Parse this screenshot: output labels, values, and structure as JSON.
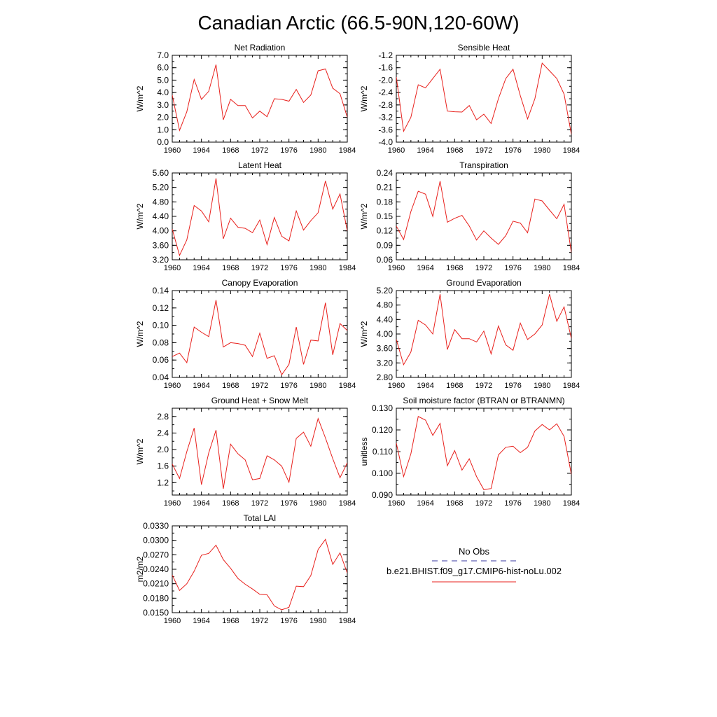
{
  "title": "Canadian Arctic (66.5-90N,120-60W)",
  "legend": {
    "entries": [
      {
        "label": "No Obs",
        "color": "#3a3aa0",
        "dashed": true
      },
      {
        "label": "b.e21.BHIST.f09_g17.CMIP6-hist-noLu.002",
        "color": "#e8201c",
        "dashed": false
      }
    ]
  },
  "chart_data": [
    {
      "type": "line",
      "title": "Net Radiation",
      "ylabel": "W/m^2",
      "ylim": [
        0.0,
        7.0
      ],
      "yticks": [
        "0.0",
        "1.0",
        "2.0",
        "3.0",
        "4.0",
        "5.0",
        "6.0",
        "7.0"
      ],
      "xticks": [
        "1960",
        "1964",
        "1968",
        "1972",
        "1976",
        "1980",
        "1984"
      ],
      "x": [
        1960,
        1961,
        1962,
        1963,
        1964,
        1965,
        1966,
        1967,
        1968,
        1969,
        1970,
        1971,
        1972,
        1973,
        1974,
        1975,
        1976,
        1977,
        1978,
        1979,
        1980,
        1981,
        1982,
        1983,
        1984
      ],
      "series": [
        {
          "color": "#e8201c",
          "values": [
            3.8,
            0.95,
            2.45,
            5.05,
            3.45,
            4.1,
            6.25,
            1.8,
            3.45,
            2.95,
            2.95,
            1.95,
            2.5,
            2.05,
            3.5,
            3.45,
            3.3,
            4.25,
            3.2,
            3.8,
            5.75,
            5.9,
            4.35,
            3.9,
            2.0
          ]
        }
      ]
    },
    {
      "type": "line",
      "title": "Sensible Heat",
      "ylabel": "W/m^2",
      "ylim": [
        -4.0,
        -1.2
      ],
      "yticks": [
        "-4.0",
        "-3.6",
        "-3.2",
        "-2.8",
        "-2.4",
        "-2.0",
        "-1.6",
        "-1.2"
      ],
      "xticks": [
        "1960",
        "1964",
        "1968",
        "1972",
        "1976",
        "1980",
        "1984"
      ],
      "x": [
        1960,
        1961,
        1962,
        1963,
        1964,
        1965,
        1966,
        1967,
        1968,
        1969,
        1970,
        1971,
        1972,
        1973,
        1974,
        1975,
        1976,
        1977,
        1978,
        1979,
        1980,
        1981,
        1982,
        1983,
        1984
      ],
      "series": [
        {
          "color": "#e8201c",
          "values": [
            -1.9,
            -3.65,
            -3.2,
            -2.15,
            -2.25,
            -1.95,
            -1.65,
            -3.0,
            -3.02,
            -3.03,
            -2.82,
            -3.28,
            -3.1,
            -3.4,
            -2.6,
            -1.95,
            -1.65,
            -2.5,
            -3.25,
            -2.6,
            -1.45,
            -1.7,
            -1.95,
            -2.45,
            -3.75
          ]
        }
      ]
    },
    {
      "type": "line",
      "title": "Latent Heat",
      "ylabel": "W/m^2",
      "ylim": [
        3.2,
        5.6
      ],
      "yticks": [
        "3.20",
        "3.60",
        "4.00",
        "4.40",
        "4.80",
        "5.20",
        "5.60"
      ],
      "xticks": [
        "1960",
        "1964",
        "1968",
        "1972",
        "1976",
        "1980",
        "1984"
      ],
      "x": [
        1960,
        1961,
        1962,
        1963,
        1964,
        1965,
        1966,
        1967,
        1968,
        1969,
        1970,
        1971,
        1972,
        1973,
        1974,
        1975,
        1976,
        1977,
        1978,
        1979,
        1980,
        1981,
        1982,
        1983,
        1984
      ],
      "series": [
        {
          "color": "#e8201c",
          "values": [
            4.05,
            3.32,
            3.75,
            4.7,
            4.55,
            4.25,
            5.45,
            3.78,
            4.35,
            4.1,
            4.07,
            3.95,
            4.3,
            3.62,
            4.37,
            3.85,
            3.72,
            4.55,
            4.02,
            4.28,
            4.5,
            5.38,
            4.6,
            5.02,
            4.0
          ]
        }
      ]
    },
    {
      "type": "line",
      "title": "Transpiration",
      "ylabel": "W/m^2",
      "ylim": [
        0.06,
        0.24
      ],
      "yticks": [
        "0.06",
        "0.09",
        "0.12",
        "0.15",
        "0.18",
        "0.21",
        "0.24"
      ],
      "xticks": [
        "1960",
        "1964",
        "1968",
        "1972",
        "1976",
        "1980",
        "1984"
      ],
      "x": [
        1960,
        1961,
        1962,
        1963,
        1964,
        1965,
        1966,
        1967,
        1968,
        1969,
        1970,
        1971,
        1972,
        1973,
        1974,
        1975,
        1976,
        1977,
        1978,
        1979,
        1980,
        1981,
        1982,
        1983,
        1984
      ],
      "series": [
        {
          "color": "#e8201c",
          "values": [
            0.13,
            0.102,
            0.16,
            0.202,
            0.196,
            0.15,
            0.223,
            0.138,
            0.146,
            0.152,
            0.13,
            0.101,
            0.12,
            0.105,
            0.092,
            0.11,
            0.14,
            0.136,
            0.116,
            0.186,
            0.182,
            0.163,
            0.145,
            0.175,
            0.075
          ]
        }
      ]
    },
    {
      "type": "line",
      "title": "Canopy Evaporation",
      "ylabel": "W/m^2",
      "ylim": [
        0.04,
        0.14
      ],
      "yticks": [
        "0.04",
        "0.06",
        "0.08",
        "0.10",
        "0.12",
        "0.14"
      ],
      "xticks": [
        "1960",
        "1964",
        "1968",
        "1972",
        "1976",
        "1980",
        "1984"
      ],
      "x": [
        1960,
        1961,
        1962,
        1963,
        1964,
        1965,
        1966,
        1967,
        1968,
        1969,
        1970,
        1971,
        1972,
        1973,
        1974,
        1975,
        1976,
        1977,
        1978,
        1979,
        1980,
        1981,
        1982,
        1983,
        1984
      ],
      "series": [
        {
          "color": "#e8201c",
          "values": [
            0.064,
            0.068,
            0.057,
            0.098,
            0.092,
            0.087,
            0.129,
            0.075,
            0.08,
            0.079,
            0.077,
            0.064,
            0.091,
            0.062,
            0.065,
            0.043,
            0.055,
            0.098,
            0.055,
            0.083,
            0.082,
            0.126,
            0.066,
            0.102,
            0.094
          ]
        }
      ]
    },
    {
      "type": "line",
      "title": "Ground Evaporation",
      "ylabel": "W/m^2",
      "ylim": [
        2.8,
        5.2
      ],
      "yticks": [
        "2.80",
        "3.20",
        "3.60",
        "4.00",
        "4.40",
        "4.80",
        "5.20"
      ],
      "xticks": [
        "1960",
        "1964",
        "1968",
        "1972",
        "1976",
        "1980",
        "1984"
      ],
      "x": [
        1960,
        1961,
        1962,
        1963,
        1964,
        1965,
        1966,
        1967,
        1968,
        1969,
        1970,
        1971,
        1972,
        1973,
        1974,
        1975,
        1976,
        1977,
        1978,
        1979,
        1980,
        1981,
        1982,
        1983,
        1984
      ],
      "series": [
        {
          "color": "#e8201c",
          "values": [
            3.85,
            3.15,
            3.5,
            4.38,
            4.25,
            4.0,
            5.1,
            3.57,
            4.12,
            3.87,
            3.87,
            3.78,
            4.08,
            3.45,
            4.22,
            3.7,
            3.55,
            4.3,
            3.85,
            4.0,
            4.25,
            5.1,
            4.35,
            4.75,
            3.88
          ]
        }
      ]
    },
    {
      "type": "line",
      "title": "Ground Heat + Snow Melt",
      "ylabel": "W/m^2",
      "ylim": [
        0.9,
        3.0
      ],
      "yticks": [
        "1.2",
        "1.6",
        "2.0",
        "2.4",
        "2.8"
      ],
      "xticks": [
        "1960",
        "1964",
        "1968",
        "1972",
        "1976",
        "1980",
        "1984"
      ],
      "x": [
        1960,
        1961,
        1962,
        1963,
        1964,
        1965,
        1966,
        1967,
        1968,
        1969,
        1970,
        1971,
        1972,
        1973,
        1974,
        1975,
        1976,
        1977,
        1978,
        1979,
        1980,
        1981,
        1982,
        1983,
        1984
      ],
      "series": [
        {
          "color": "#e8201c",
          "values": [
            1.65,
            1.3,
            1.95,
            2.52,
            1.15,
            1.92,
            2.47,
            1.05,
            2.13,
            1.9,
            1.75,
            1.27,
            1.3,
            1.85,
            1.75,
            1.6,
            1.21,
            2.27,
            2.42,
            2.08,
            2.75,
            2.28,
            1.78,
            1.32,
            1.68
          ]
        }
      ]
    },
    {
      "type": "line",
      "title": "Soil moisture factor (BTRAN or BTRANMN)",
      "ylabel": "unitless",
      "ylim": [
        0.09,
        0.13
      ],
      "yticks": [
        "0.090",
        "0.100",
        "0.110",
        "0.120",
        "0.130"
      ],
      "xticks": [
        "1960",
        "1964",
        "1968",
        "1972",
        "1976",
        "1980",
        "1984"
      ],
      "x": [
        1960,
        1961,
        1962,
        1963,
        1964,
        1965,
        1966,
        1967,
        1968,
        1969,
        1970,
        1971,
        1972,
        1973,
        1974,
        1975,
        1976,
        1977,
        1978,
        1979,
        1980,
        1981,
        1982,
        1983,
        1984
      ],
      "series": [
        {
          "color": "#e8201c",
          "values": [
            0.114,
            0.0985,
            0.109,
            0.1262,
            0.1245,
            0.1175,
            0.123,
            0.1035,
            0.1105,
            0.1015,
            0.1067,
            0.0985,
            0.0925,
            0.093,
            0.1085,
            0.112,
            0.1125,
            0.1095,
            0.112,
            0.1195,
            0.1225,
            0.12,
            0.1228,
            0.117,
            0.0995
          ]
        }
      ]
    },
    {
      "type": "line",
      "title": "Total LAI",
      "ylabel": "m2/m2",
      "ylim": [
        0.015,
        0.033
      ],
      "yticks": [
        "0.0150",
        "0.0180",
        "0.0210",
        "0.0240",
        "0.0270",
        "0.0300",
        "0.0330"
      ],
      "xticks": [
        "1960",
        "1964",
        "1968",
        "1972",
        "1976",
        "1980",
        "1984"
      ],
      "x": [
        1960,
        1961,
        1962,
        1963,
        1964,
        1965,
        1966,
        1967,
        1968,
        1969,
        1970,
        1971,
        1972,
        1973,
        1974,
        1975,
        1976,
        1977,
        1978,
        1979,
        1980,
        1981,
        1982,
        1983,
        1984
      ],
      "series": [
        {
          "color": "#e8201c",
          "values": [
            0.0228,
            0.0196,
            0.021,
            0.0236,
            0.0269,
            0.0273,
            0.029,
            0.026,
            0.0242,
            0.0221,
            0.0209,
            0.0199,
            0.0188,
            0.0187,
            0.0164,
            0.0156,
            0.0161,
            0.0205,
            0.0204,
            0.0227,
            0.0281,
            0.0302,
            0.025,
            0.0274,
            0.0232
          ]
        }
      ]
    }
  ]
}
